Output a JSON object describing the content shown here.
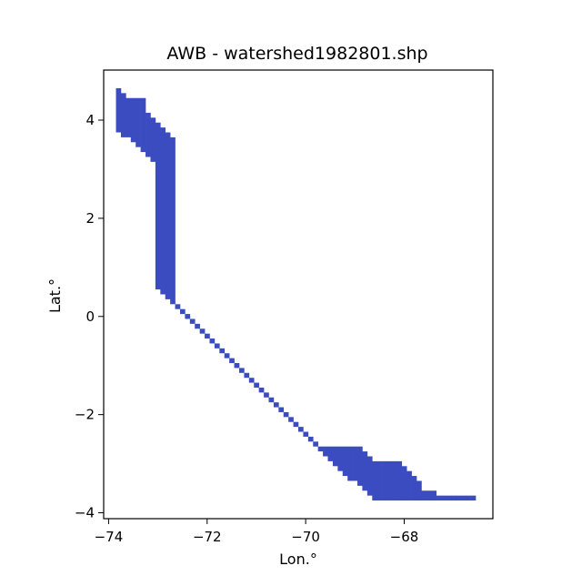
{
  "chart_data": {
    "type": "heatmap",
    "title": "AWB - watershed1982801.shp",
    "xlabel": "Lon.°",
    "ylabel": "Lat.°",
    "xlim": [
      -74.1,
      -66.2
    ],
    "ylim": [
      -4.12,
      5.02
    ],
    "xticks": [
      -74,
      -72,
      -70,
      -68
    ],
    "xtick_labels": [
      "−74",
      "−72",
      "−70",
      "−68"
    ],
    "yticks": [
      4,
      2,
      0,
      -2,
      -4
    ],
    "ytick_labels": [
      "4",
      "2",
      "0",
      "−2",
      "−4"
    ],
    "grid": false,
    "fill_color": "#3b4cc0",
    "cell_size_deg": 0.1,
    "lon_bins": [
      -73.8,
      -73.7,
      -73.6,
      -73.5,
      -73.4,
      -73.3,
      -73.2,
      -73.1,
      -73.0,
      -72.9,
      -72.8,
      -72.7,
      -72.6,
      -72.5,
      -72.4,
      -72.3,
      -72.2,
      -72.1,
      -72.0,
      -71.9,
      -71.8,
      -71.7,
      -71.6,
      -71.5,
      -71.4,
      -71.3,
      -71.2,
      -71.1,
      -71.0,
      -70.9,
      -70.8,
      -70.7,
      -70.6,
      -70.5,
      -70.4,
      -70.3,
      -70.2,
      -70.1,
      -70.0,
      -69.9,
      -69.8,
      -69.7,
      -69.6,
      -69.5,
      -69.4,
      -69.3,
      -69.2,
      -69.1,
      -69.0,
      -68.9,
      -68.8,
      -68.7,
      -68.6,
      -68.5,
      -68.4,
      -68.3,
      -68.2,
      -68.1,
      -68.0,
      -67.9,
      -67.8,
      -67.7,
      -67.6,
      -67.5,
      -67.4,
      -67.3,
      -67.2,
      -67.1,
      -67.0,
      -66.9,
      -66.8,
      -66.7,
      -66.6
    ],
    "lat_extent_per_bin": [
      [
        3.75,
        4.65
      ],
      [
        3.65,
        4.55
      ],
      [
        3.65,
        4.45
      ],
      [
        3.55,
        4.45
      ],
      [
        3.45,
        4.45
      ],
      [
        3.35,
        4.45
      ],
      [
        3.25,
        4.15
      ],
      [
        3.15,
        4.05
      ],
      [
        0.55,
        3.95
      ],
      [
        0.45,
        3.85
      ],
      [
        0.35,
        3.75
      ],
      [
        0.25,
        3.65
      ],
      [
        0.15,
        0.25
      ],
      [
        0.05,
        0.15
      ],
      [
        -0.05,
        0.05
      ],
      [
        -0.15,
        -0.05
      ],
      [
        -0.25,
        -0.15
      ],
      [
        -0.35,
        -0.25
      ],
      [
        -0.45,
        -0.35
      ],
      [
        -0.55,
        -0.45
      ],
      [
        -0.65,
        -0.55
      ],
      [
        -0.75,
        -0.65
      ],
      [
        -0.85,
        -0.75
      ],
      [
        -0.95,
        -0.85
      ],
      [
        -1.05,
        -0.95
      ],
      [
        -1.15,
        -1.05
      ],
      [
        -1.25,
        -1.15
      ],
      [
        -1.35,
        -1.25
      ],
      [
        -1.45,
        -1.35
      ],
      [
        -1.55,
        -1.45
      ],
      [
        -1.65,
        -1.55
      ],
      [
        -1.75,
        -1.65
      ],
      [
        -1.85,
        -1.75
      ],
      [
        -1.95,
        -1.85
      ],
      [
        -2.05,
        -1.95
      ],
      [
        -2.15,
        -2.05
      ],
      [
        -2.25,
        -2.15
      ],
      [
        -2.35,
        -2.25
      ],
      [
        -2.45,
        -2.35
      ],
      [
        -2.55,
        -2.45
      ],
      [
        -2.65,
        -2.55
      ],
      [
        -2.75,
        -2.65
      ],
      [
        -2.85,
        -2.65
      ],
      [
        -2.95,
        -2.65
      ],
      [
        -3.05,
        -2.65
      ],
      [
        -3.15,
        -2.65
      ],
      [
        -3.25,
        -2.65
      ],
      [
        -3.35,
        -2.65
      ],
      [
        -3.35,
        -2.65
      ],
      [
        -3.45,
        -2.65
      ],
      [
        -3.55,
        -2.75
      ],
      [
        -3.65,
        -2.85
      ],
      [
        -3.75,
        -2.95
      ],
      [
        -3.75,
        -2.95
      ],
      [
        -3.75,
        -2.95
      ],
      [
        -3.75,
        -2.95
      ],
      [
        -3.75,
        -2.95
      ],
      [
        -3.75,
        -2.95
      ],
      [
        -3.75,
        -3.05
      ],
      [
        -3.75,
        -3.15
      ],
      [
        -3.75,
        -3.25
      ],
      [
        -3.75,
        -3.35
      ],
      [
        -3.75,
        -3.55
      ],
      [
        -3.75,
        -3.55
      ],
      [
        -3.75,
        -3.55
      ],
      [
        -3.75,
        -3.65
      ],
      [
        -3.75,
        -3.65
      ],
      [
        -3.75,
        -3.65
      ],
      [
        -3.75,
        -3.65
      ],
      [
        -3.75,
        -3.65
      ],
      [
        -3.75,
        -3.65
      ],
      [
        -3.75,
        -3.65
      ],
      [
        -3.75,
        -3.65
      ]
    ]
  }
}
